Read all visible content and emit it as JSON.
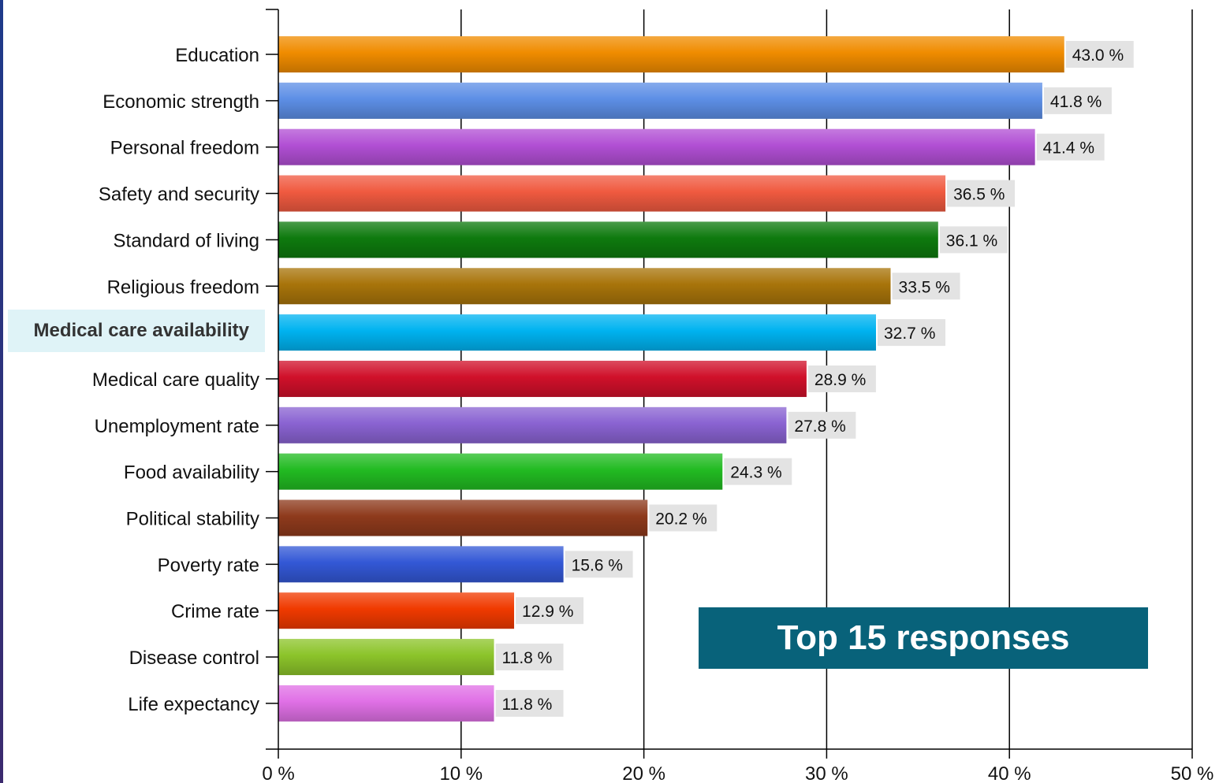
{
  "chart_data": {
    "type": "bar",
    "orientation": "horizontal",
    "categories": [
      "Education",
      "Economic strength",
      "Personal freedom",
      "Safety and security",
      "Standard of living",
      "Religious freedom",
      "Medical care availability",
      "Medical care quality",
      "Unemployment rate",
      "Food availability",
      "Political stability",
      "Poverty rate",
      "Crime rate",
      "Disease control",
      "Life expectancy"
    ],
    "values": [
      43.0,
      41.8,
      41.4,
      36.5,
      36.1,
      33.5,
      32.7,
      28.9,
      27.8,
      24.3,
      20.2,
      15.6,
      12.9,
      11.8,
      11.8
    ],
    "value_labels": [
      "43.0 %",
      "41.8 %",
      "41.4 %",
      "36.5 %",
      "36.1 %",
      "33.5 %",
      "32.7 %",
      "28.9 %",
      "27.8 %",
      "24.3 %",
      "20.2 %",
      "15.6 %",
      "12.9 %",
      "11.8 %",
      "11.8 %"
    ],
    "bar_colors": [
      "#f08c00",
      "#5d8fe6",
      "#b14fd4",
      "#f05a40",
      "#0e7a0e",
      "#a8740a",
      "#00b3f0",
      "#d0102a",
      "#8a63d2",
      "#22bb22",
      "#8e3a1c",
      "#3358d6",
      "#f03a00",
      "#8cc42a",
      "#e070e6"
    ],
    "highlighted_category": "Medical care availability",
    "xlim": [
      0,
      50
    ],
    "x_ticks": [
      0,
      10,
      20,
      30,
      40,
      50
    ],
    "x_tick_labels": [
      "0 %",
      "10 %",
      "20 %",
      "30 %",
      "40 %",
      "50 %"
    ],
    "grid": "vertical",
    "title": "",
    "xlabel": "",
    "ylabel": ""
  },
  "badge": {
    "text": "Top 15 responses",
    "color": "#08627a"
  }
}
